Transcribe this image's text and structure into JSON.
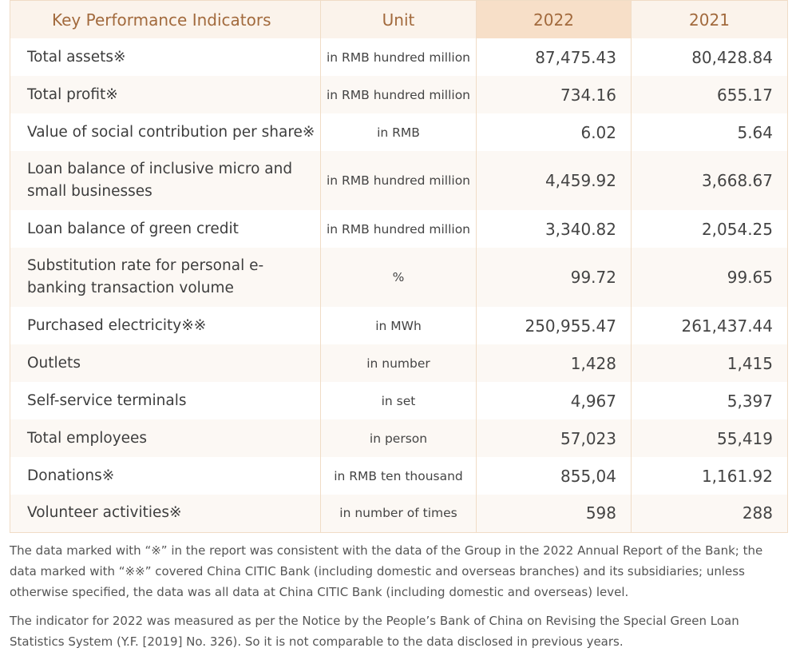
{
  "header": {
    "col_indicator": "Key Performance Indicators",
    "col_unit": "Unit",
    "col_2022": "2022",
    "col_2021": "2021"
  },
  "rows": [
    {
      "indicator": "Total assets※",
      "unit": "in RMB hundred million",
      "v2022": "87,475.43",
      "v2021": "80,428.84"
    },
    {
      "indicator": "Total profit※",
      "unit": "in RMB hundred million",
      "v2022": "734.16",
      "v2021": "655.17"
    },
    {
      "indicator": "Value of social contribution per share※",
      "unit": "in RMB",
      "v2022": "6.02",
      "v2021": "5.64"
    },
    {
      "indicator": "Loan balance of inclusive micro and small businesses",
      "unit": "in RMB hundred million",
      "v2022": "4,459.92",
      "v2021": "3,668.67"
    },
    {
      "indicator": "Loan balance of green credit",
      "unit": "in RMB hundred million",
      "v2022": "3,340.82",
      "v2021": "2,054.25"
    },
    {
      "indicator": "Substitution rate for personal e-banking transaction volume",
      "unit": "%",
      "v2022": "99.72",
      "v2021": "99.65"
    },
    {
      "indicator": "Purchased electricity※※",
      "unit": "in MWh",
      "v2022": "250,955.47",
      "v2021": "261,437.44"
    },
    {
      "indicator": "Outlets",
      "unit": "in number",
      "v2022": "1,428",
      "v2021": "1,415"
    },
    {
      "indicator": "Self-service terminals",
      "unit": "in set",
      "v2022": "4,967",
      "v2021": "5,397"
    },
    {
      "indicator": "Total employees",
      "unit": "in person",
      "v2022": "57,023",
      "v2021": "55,419"
    },
    {
      "indicator": "Donations※",
      "unit": "in RMB ten thousand",
      "v2022": "855,04",
      "v2021": "1,161.92"
    },
    {
      "indicator": "Volunteer activities※",
      "unit": "in number of times",
      "v2022": "598",
      "v2021": "288"
    }
  ],
  "notes": {
    "note1": "The data marked with “※” in the report was consistent with the data of the Group in the 2022 Annual Report of the Bank; the data marked with “※※” covered China CITIC Bank (including domestic and overseas branches) and its subsidiaries; unless otherwise specified, the data was all data at China CITIC Bank (including domestic and overseas) level.",
    "note2": "The indicator for 2022 was measured as per the Notice by the People’s Bank of China on Revising the Special Green Loan Statistics System (Y.F. [2019] No. 326). So it is not comparable to the data disclosed in previous years."
  }
}
